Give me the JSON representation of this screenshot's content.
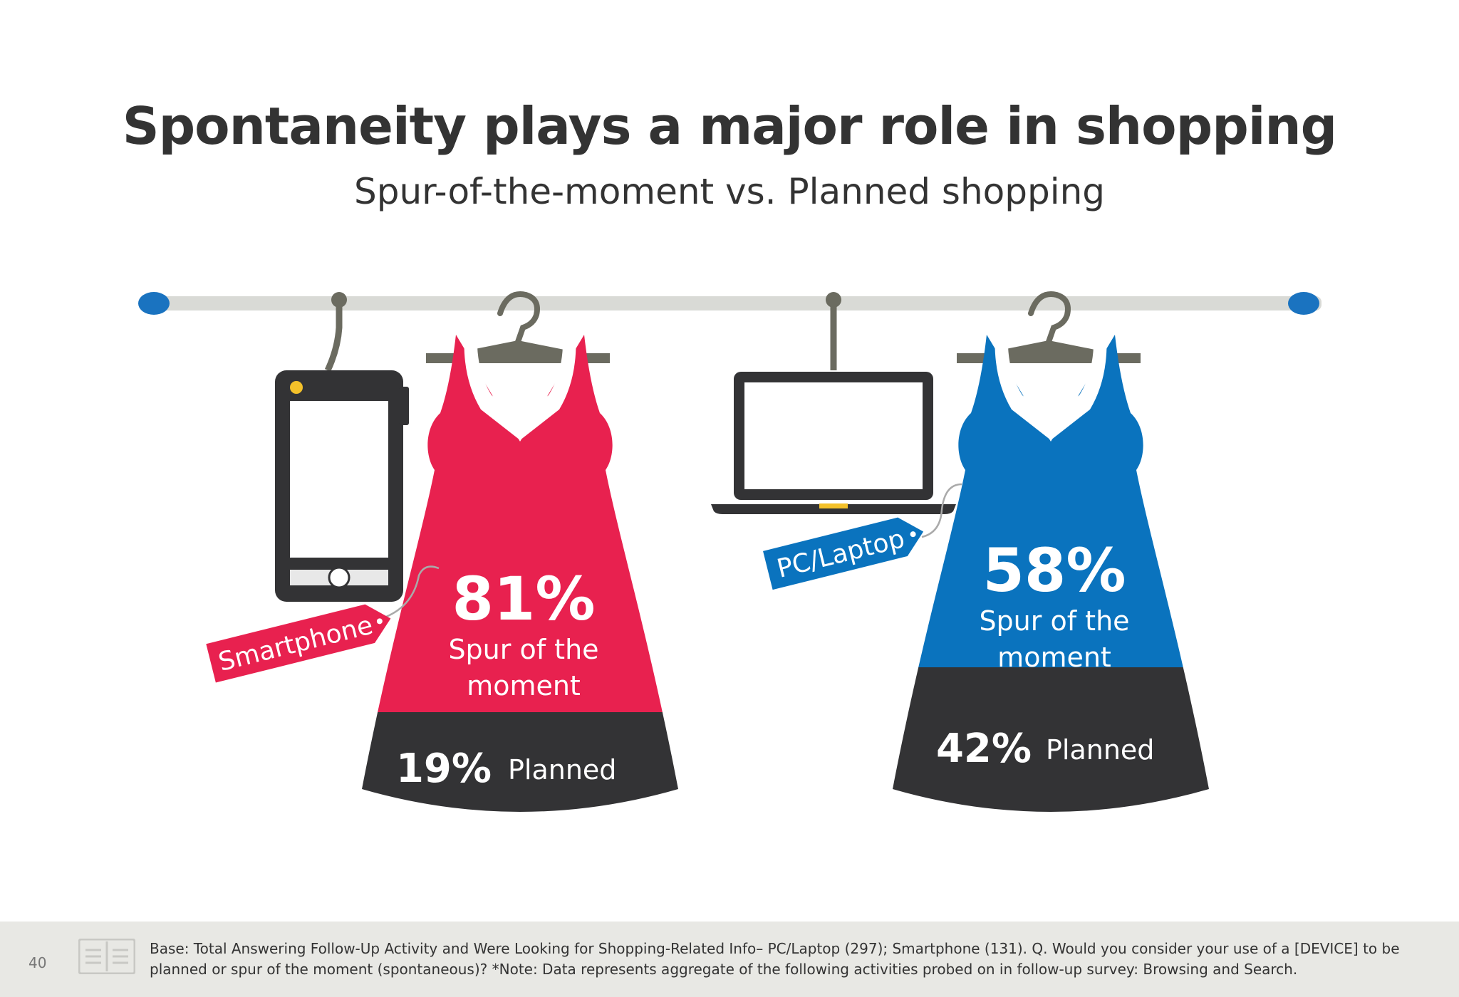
{
  "header": {
    "title": "Spontaneity plays a major role in shopping",
    "subtitle": "Spur-of-the-moment vs. Planned shopping"
  },
  "devices": [
    {
      "tag": "Smartphone",
      "spur_value": "81%",
      "spur_label_line1": "Spur of the",
      "spur_label_line2": "moment",
      "planned_value": "19%",
      "planned_label": "Planned",
      "spur_pct": 81,
      "planned_pct": 19,
      "color": "#e8214f"
    },
    {
      "tag": "PC/Laptop",
      "spur_value": "58%",
      "spur_label_line1": "Spur of the",
      "spur_label_line2": "moment",
      "planned_value": "42%",
      "planned_label": "Planned",
      "spur_pct": 58,
      "planned_pct": 42,
      "color": "#0a73be"
    }
  ],
  "icons": [
    "smartphone-icon",
    "laptop-icon",
    "hanger-icon",
    "book-icon"
  ],
  "colors": {
    "planned": "#333335",
    "rail": "#d9dad6",
    "rail_end": "#1a73c0",
    "hanger": "#6b6b60"
  },
  "footer": {
    "page_number": "40",
    "note_line1": "Base: Total Answering Follow-Up Activity and Were Looking for Shopping-Related Info– PC/Laptop (297); Smartphone (131). Q. Would you consider your use of a [DEVICE] to be",
    "note_line2": "planned or spur of the moment (spontaneous)?  *Note: Data represents aggregate of the following activities probed on in follow-up survey: Browsing and Search."
  }
}
